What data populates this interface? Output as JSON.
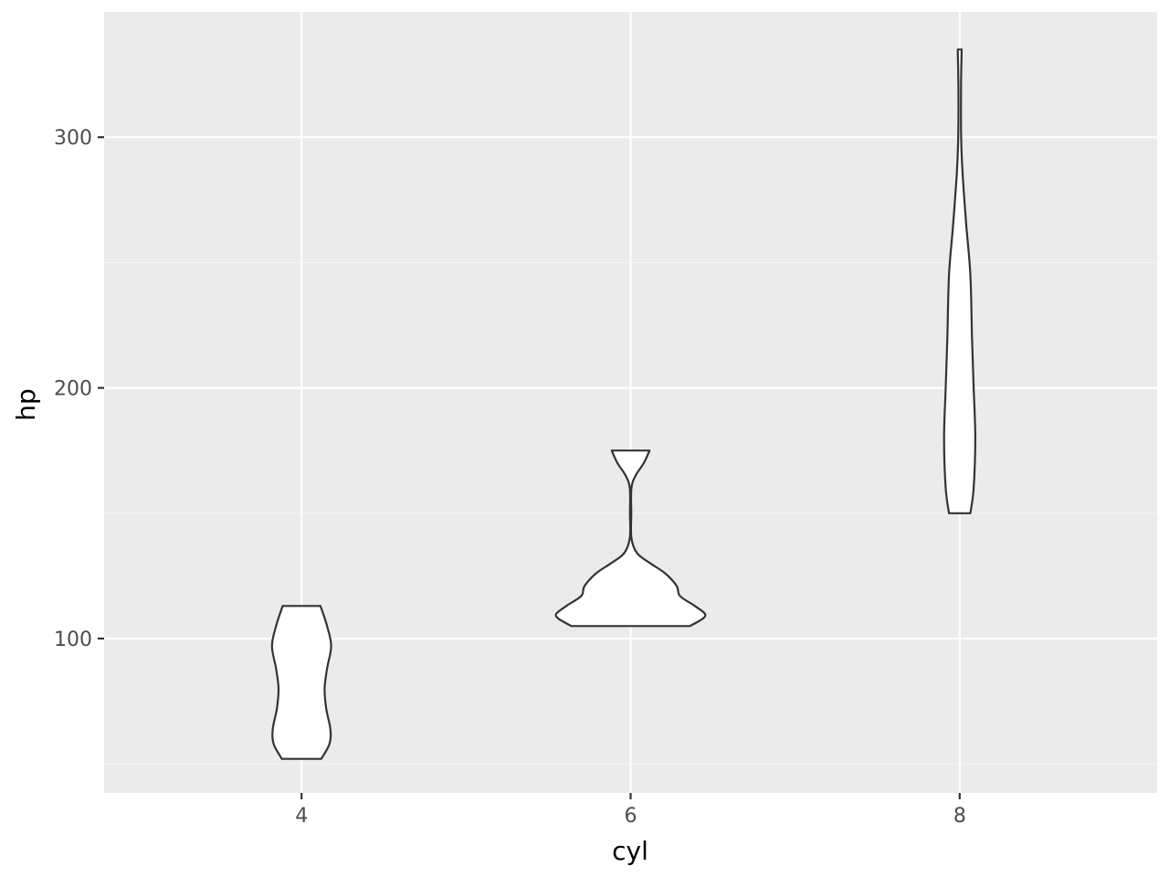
{
  "chart_data": {
    "type": "violin",
    "title": "",
    "xlabel": "cyl",
    "ylabel": "hp",
    "x_ticks": [
      4,
      6,
      8
    ],
    "y_ticks": [
      100,
      200,
      300
    ],
    "xlim": [
      2.8,
      9.2
    ],
    "ylim": [
      38.4,
      350
    ],
    "grid": true,
    "legend": "none",
    "series": [
      {
        "x": 4,
        "min": 52,
        "max": 113,
        "profile": [
          {
            "y": 52,
            "width": 0.12
          },
          {
            "y": 58,
            "width": 0.17
          },
          {
            "y": 64,
            "width": 0.175
          },
          {
            "y": 72,
            "width": 0.15
          },
          {
            "y": 80,
            "width": 0.14
          },
          {
            "y": 88,
            "width": 0.155
          },
          {
            "y": 97,
            "width": 0.18
          },
          {
            "y": 105,
            "width": 0.155
          },
          {
            "y": 113,
            "width": 0.115
          }
        ]
      },
      {
        "x": 6,
        "min": 105,
        "max": 175,
        "profile": [
          {
            "y": 105,
            "width": 0.36
          },
          {
            "y": 108,
            "width": 0.44
          },
          {
            "y": 110,
            "width": 0.45
          },
          {
            "y": 113,
            "width": 0.39
          },
          {
            "y": 117,
            "width": 0.3
          },
          {
            "y": 121,
            "width": 0.28
          },
          {
            "y": 126,
            "width": 0.21
          },
          {
            "y": 130,
            "width": 0.12
          },
          {
            "y": 134,
            "width": 0.04
          },
          {
            "y": 140,
            "width": 0.005
          },
          {
            "y": 150,
            "width": 0.004
          },
          {
            "y": 160,
            "width": 0.005
          },
          {
            "y": 165,
            "width": 0.03
          },
          {
            "y": 170,
            "width": 0.08
          },
          {
            "y": 175,
            "width": 0.115
          }
        ]
      },
      {
        "x": 8,
        "min": 150,
        "max": 335,
        "profile": [
          {
            "y": 150,
            "width": 0.065
          },
          {
            "y": 160,
            "width": 0.085
          },
          {
            "y": 180,
            "width": 0.095
          },
          {
            "y": 200,
            "width": 0.085
          },
          {
            "y": 220,
            "width": 0.075
          },
          {
            "y": 245,
            "width": 0.065
          },
          {
            "y": 265,
            "width": 0.04
          },
          {
            "y": 285,
            "width": 0.018
          },
          {
            "y": 300,
            "width": 0.009
          },
          {
            "y": 320,
            "width": 0.008
          },
          {
            "y": 335,
            "width": 0.012
          }
        ]
      }
    ]
  },
  "colors": {
    "panel_background": "#ebebeb",
    "grid_major": "#ffffff",
    "grid_minor": "#f5f5f5",
    "violin_fill": "#ffffff",
    "violin_outline": "#333333",
    "tick_text": "#4d4d4d",
    "axis_title": "#000000"
  }
}
